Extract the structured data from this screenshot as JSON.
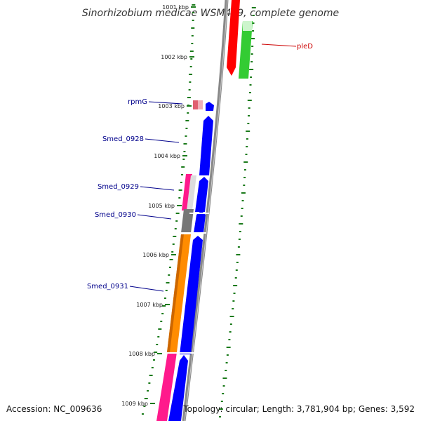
{
  "title": "Sinorhizobium medicae WSM419, complete genome",
  "footer": {
    "accession": "Accession: NC_009636",
    "topology": "Topology: circular; Length: 3,781,904 bp; Genes: 3,592"
  },
  "colors": {
    "forward": "#0000ff",
    "backbone": "#888888",
    "reverse_red": "#ff0000",
    "reverse_green": "#33cc33",
    "rpmG": "#e06070",
    "gc_dots": "#1a7a1a",
    "magenta": "#ff1a8c",
    "gray": "#777777",
    "orange": "#ff8c00",
    "label_blue": "#00008b",
    "label_red": "#cc0000"
  },
  "chart_data": {
    "type": "genome-map",
    "kbp_ticks": [
      "1001 kbp",
      "1002 kbp",
      "1003 kbp",
      "1004 kbp",
      "1005 kbp",
      "1006 kbp",
      "1007 kbp",
      "1008 kbp",
      "1009 kbp"
    ],
    "genes": [
      {
        "label": "pleD",
        "color": "label_red"
      },
      {
        "label": "rpmG",
        "color": "label_blue"
      },
      {
        "label": "Smed_0928",
        "color": "label_blue"
      },
      {
        "label": "Smed_0929",
        "color": "label_blue"
      },
      {
        "label": "Smed_0930",
        "color": "label_blue"
      },
      {
        "label": "Smed_0931",
        "color": "label_blue"
      }
    ]
  }
}
